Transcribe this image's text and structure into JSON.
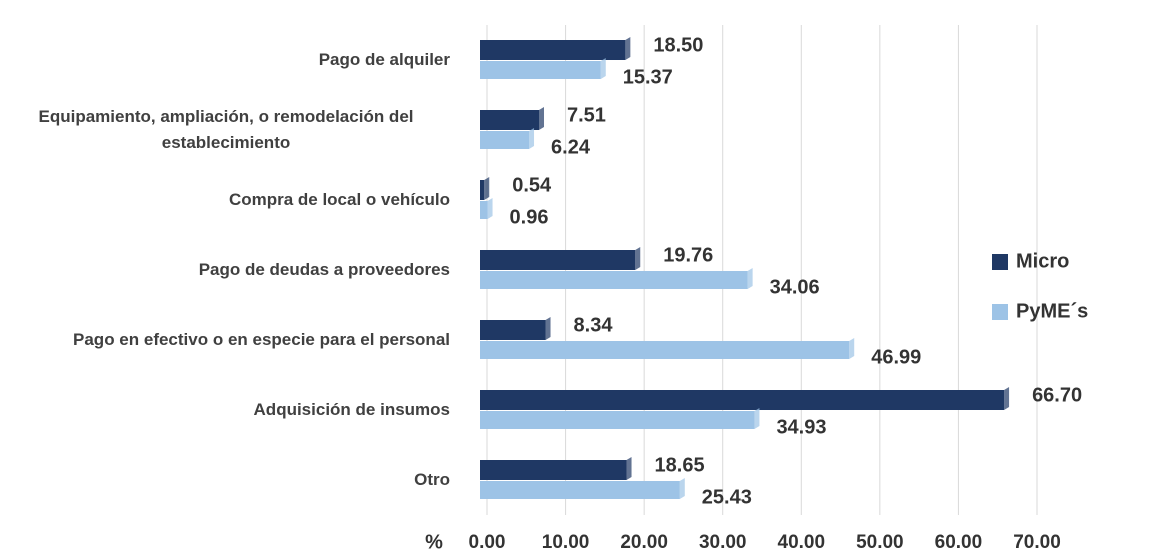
{
  "chart_data": {
    "type": "bar",
    "orientation": "horizontal",
    "categories": [
      "Pago de alquiler",
      "Equipamiento, ampliación, o remodelación del establecimiento",
      "Compra de local o vehículo",
      "Pago de deudas a proveedores",
      "Pago en efectivo o en especie para el personal",
      "Adquisición de insumos",
      "Otro"
    ],
    "series": [
      {
        "name": "Micro",
        "color": "#1f3864",
        "values": [
          18.5,
          7.51,
          0.54,
          19.76,
          8.34,
          66.7,
          18.65
        ],
        "value_labels": [
          "18.50",
          "7.51",
          "0.54",
          "19.76",
          "8.34",
          "66.70",
          "18.65"
        ]
      },
      {
        "name": "PyME´s",
        "color": "#9dc3e6",
        "values": [
          15.37,
          6.24,
          0.96,
          34.06,
          46.99,
          34.93,
          25.43
        ],
        "value_labels": [
          "15.37",
          "6.24",
          "0.96",
          "34.06",
          "46.99",
          "34.93",
          "25.43"
        ]
      }
    ],
    "xlabel": "%",
    "xlim": [
      0,
      70
    ],
    "xticks": [
      {
        "value": 0,
        "label": "0.00"
      },
      {
        "value": 10,
        "label": "10.00"
      },
      {
        "value": 20,
        "label": "20.00"
      },
      {
        "value": 30,
        "label": "30.00"
      },
      {
        "value": 40,
        "label": "40.00"
      },
      {
        "value": 50,
        "label": "50.00"
      },
      {
        "value": 60,
        "label": "60.00"
      },
      {
        "value": 70,
        "label": "70.00"
      }
    ],
    "grid": true,
    "legend": "right"
  }
}
